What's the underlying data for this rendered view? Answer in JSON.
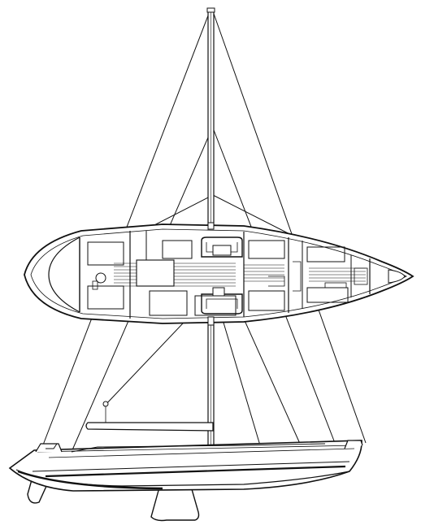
{
  "drawing": {
    "subject": "sailboat-sail-plan-and-accommodation-layout",
    "colors": {
      "ink": "#111111",
      "background": "#ffffff",
      "bottom_paint": "#1a1a1a"
    }
  }
}
